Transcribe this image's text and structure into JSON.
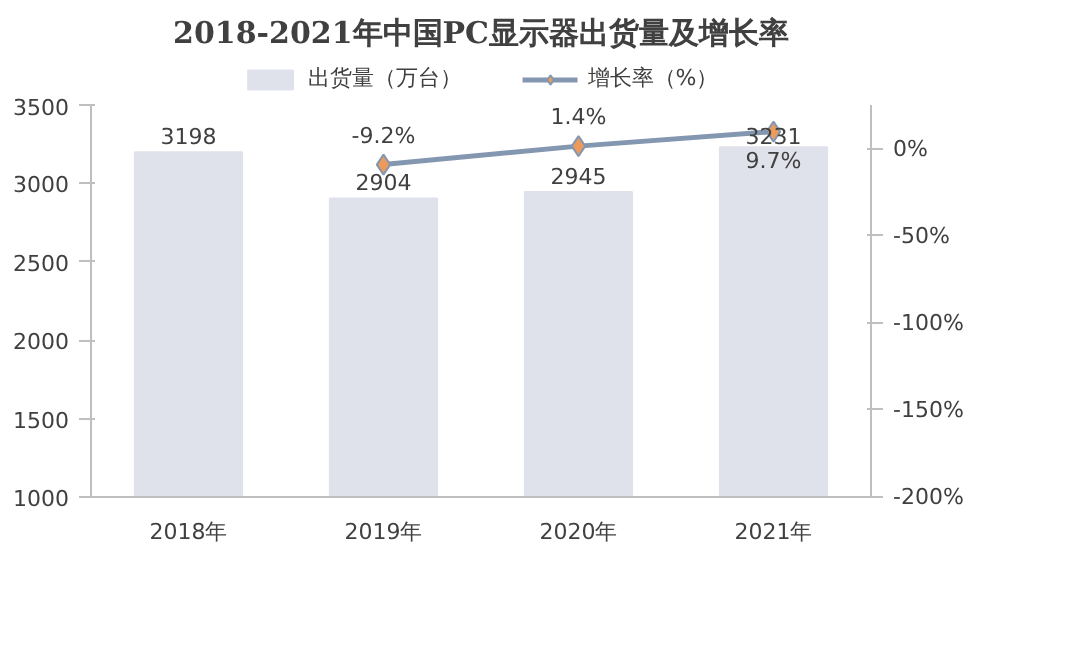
{
  "chart_data": {
    "type": "bar",
    "title": "2018-2021年中国PC显示器出货量及增长率",
    "categories": [
      "2018年",
      "2019年",
      "2020年",
      "2021年"
    ],
    "series": [
      {
        "name": "出货量（万台）",
        "color": "#dfe2ea",
        "values": [
          3198,
          2904,
          2945,
          3231
        ]
      },
      {
        "name": "增长率（%）",
        "type": "line",
        "axis": "y2",
        "color": "#8497b0",
        "values": [
          null,
          -9.2,
          1.4,
          9.7
        ],
        "value_labels": [
          null,
          "-9.2%",
          "1.4%",
          "9.7%"
        ]
      }
    ],
    "ylim": [
      1000,
      3500
    ],
    "yticks": [
      1000,
      1500,
      2000,
      2500,
      3000,
      3500
    ],
    "y2lim": [
      -200,
      25
    ],
    "y2ticks": [
      {
        "value": -200,
        "label": "-200%"
      },
      {
        "value": -150,
        "label": "-150%"
      },
      {
        "value": -100,
        "label": "-100%"
      },
      {
        "value": -50,
        "label": "-50%"
      },
      {
        "value": 0,
        "label": "0%"
      }
    ],
    "data_labels": true,
    "marker": "diamond",
    "grid": false,
    "legend": "top"
  }
}
